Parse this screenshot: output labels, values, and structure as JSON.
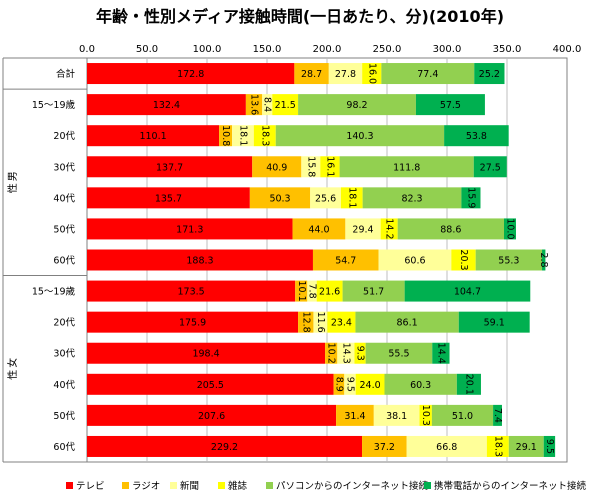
{
  "chart_data": {
    "type": "bar",
    "orientation": "horizontal",
    "stacked": true,
    "title": "年齢・性別メディア接触時間(一日あたり、分)(2010年)",
    "xlim": [
      0,
      400
    ],
    "x_ticks": [
      "0.0",
      "50.0",
      "100.0",
      "150.0",
      "200.0",
      "250.0",
      "300.0",
      "350.0",
      "400.0"
    ],
    "grid": true,
    "legend_position": "bottom",
    "groups": [
      {
        "label": "",
        "rows": [
          0
        ]
      },
      {
        "label": "男性",
        "rows": [
          1,
          2,
          3,
          4,
          5,
          6
        ]
      },
      {
        "label": "女性",
        "rows": [
          7,
          8,
          9,
          10,
          11,
          12
        ]
      }
    ],
    "categories": [
      "合計",
      "15～19歳",
      "20代",
      "30代",
      "40代",
      "50代",
      "60代",
      "15～19歳",
      "20代",
      "30代",
      "40代",
      "50代",
      "60代"
    ],
    "series": [
      {
        "name": "テレビ",
        "color": "#ff0000",
        "values": [
          172.8,
          132.4,
          110.1,
          137.7,
          135.7,
          171.3,
          188.3,
          173.5,
          175.9,
          198.4,
          205.5,
          207.6,
          229.2
        ]
      },
      {
        "name": "ラジオ",
        "color": "#ffc000",
        "values": [
          28.7,
          13.6,
          10.8,
          40.9,
          50.3,
          44.0,
          54.7,
          10.1,
          12.8,
          10.2,
          8.9,
          31.4,
          37.2
        ]
      },
      {
        "name": "新聞",
        "color": "#ffff99",
        "values": [
          27.8,
          8.4,
          18.1,
          15.8,
          25.6,
          29.4,
          60.6,
          7.8,
          11.6,
          14.3,
          9.5,
          38.1,
          66.8
        ]
      },
      {
        "name": "雑誌",
        "color": "#ffff00",
        "values": [
          16.0,
          21.5,
          18.3,
          16.1,
          18.1,
          14.2,
          20.3,
          21.6,
          23.4,
          9.3,
          24.0,
          10.3,
          18.3
        ]
      },
      {
        "name": "パソコンからのインターネット接続",
        "color": "#92d050",
        "values": [
          77.4,
          98.2,
          140.3,
          111.8,
          82.3,
          88.6,
          55.3,
          51.7,
          86.1,
          55.5,
          60.3,
          51.0,
          29.1
        ]
      },
      {
        "name": "携帯電話からのインターネット接続",
        "color": "#00b050",
        "values": [
          25.2,
          57.5,
          53.8,
          27.5,
          15.9,
          10.0,
          2.8,
          104.7,
          59.1,
          14.4,
          20.1,
          7.4,
          9.5
        ]
      }
    ]
  }
}
